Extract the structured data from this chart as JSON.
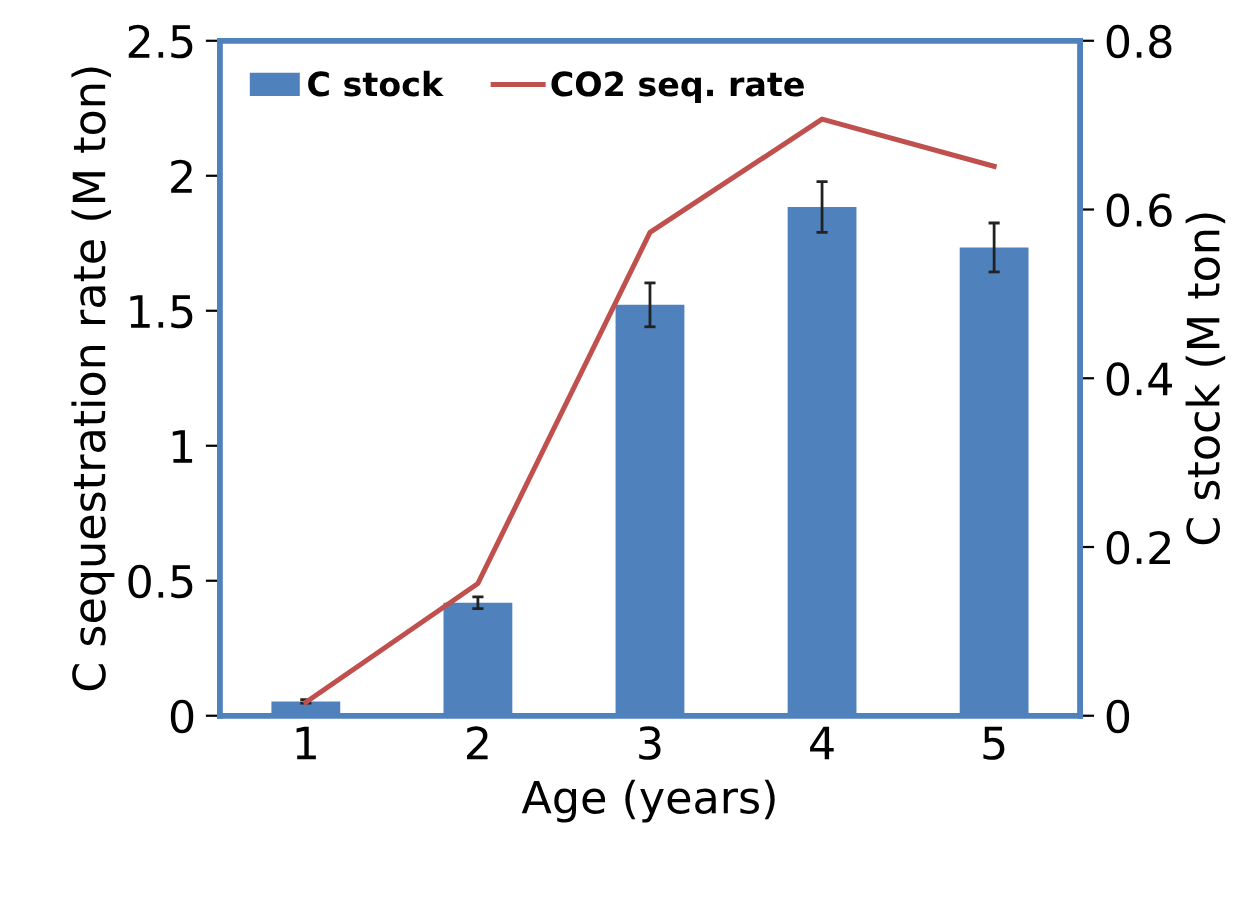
{
  "chart_data": {
    "type": "bar",
    "xlabel": "Age (years)",
    "ylabel": "C sequestration rate (M ton)",
    "y2label": "C stock (M ton)",
    "categories": [
      "1",
      "2",
      "3",
      "4",
      "5"
    ],
    "series": [
      {
        "name": "C stock",
        "axis": "y2",
        "color": "#4f81bd",
        "values": [
          0.017,
          0.134,
          0.487,
          0.603,
          0.555
        ],
        "errors": [
          0.002,
          0.007,
          0.026,
          0.03,
          0.029
        ]
      },
      {
        "name": "CO2 seq. rate",
        "type": "line",
        "axis": "y",
        "color": "#c0504d",
        "values": [
          0.05,
          0.49,
          1.79,
          2.21,
          2.035
        ]
      }
    ],
    "ylim": [
      0,
      2.5
    ],
    "yticks": [
      0,
      0.5,
      1,
      1.5,
      2,
      2.5
    ],
    "y2lim": [
      0,
      0.8
    ],
    "y2ticks": [
      0,
      0.2,
      0.4,
      0.6,
      0.8
    ],
    "legend": "top left",
    "grid": false
  }
}
